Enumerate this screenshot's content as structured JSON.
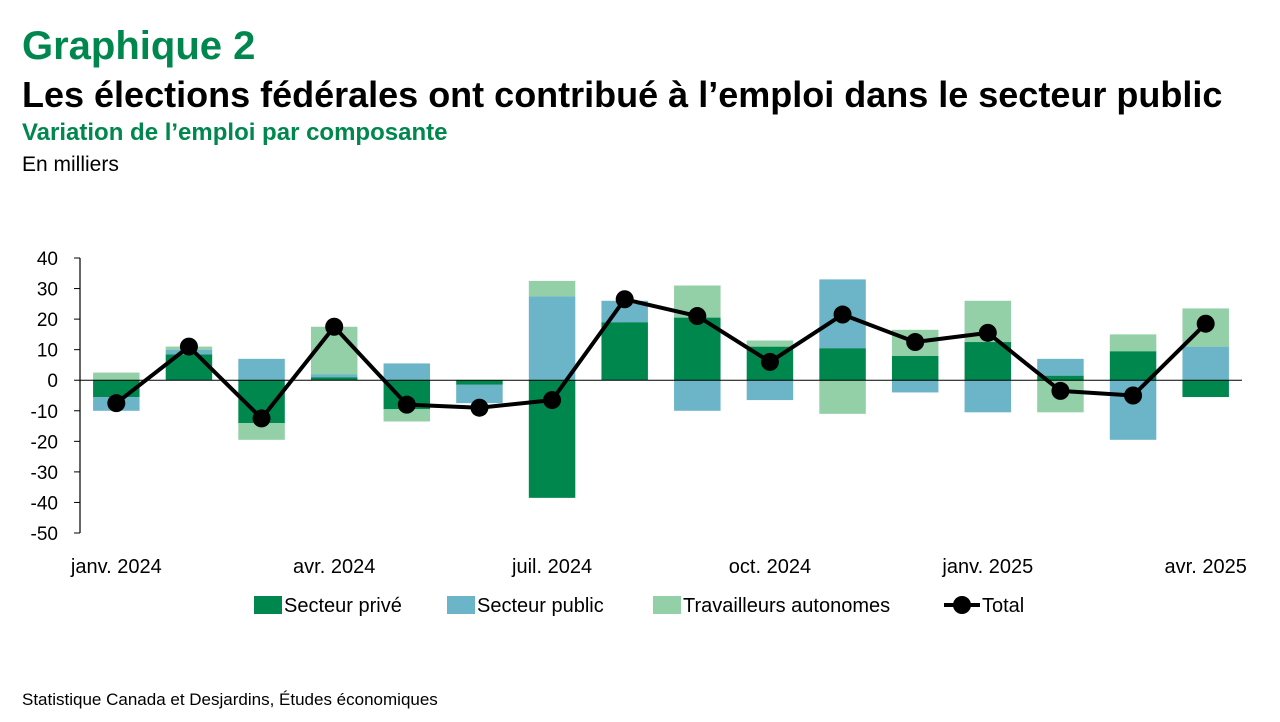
{
  "header": {
    "kicker": "Graphique 2",
    "title": "Les élections fédérales ont contribué à l’emploi dans le secteur public",
    "subtitle": "Variation de l’emploi par composante",
    "unit": "En milliers"
  },
  "source": "Statistique Canada et Desjardins, Études économiques",
  "colors": {
    "prive": "#00874E",
    "public": "#6CB4C8",
    "autonomes": "#93CFA7",
    "total": "#000000",
    "title_green": "#00874E"
  },
  "chart_data": {
    "type": "bar",
    "stacked": true,
    "ylabel": "En milliers",
    "ylim": [
      -50,
      40
    ],
    "yticks": [
      40,
      30,
      20,
      10,
      0,
      -10,
      -20,
      -30,
      -40,
      -50
    ],
    "x": [
      "2024-01",
      "2024-02",
      "2024-03",
      "2024-04",
      "2024-05",
      "2024-06",
      "2024-07",
      "2024-08",
      "2024-09",
      "2024-10",
      "2024-11",
      "2024-12",
      "2025-01",
      "2025-02",
      "2025-03",
      "2025-04"
    ],
    "xtick_labels": [
      {
        "index": 0,
        "label": "janv. 2024"
      },
      {
        "index": 3,
        "label": "avr. 2024"
      },
      {
        "index": 6,
        "label": "juil. 2024"
      },
      {
        "index": 9,
        "label": "oct. 2024"
      },
      {
        "index": 12,
        "label": "janv. 2025"
      },
      {
        "index": 15,
        "label": "avr. 2025"
      }
    ],
    "series": [
      {
        "name": "Secteur privé",
        "kind": "bar",
        "color": "#00874E",
        "values": [
          -5.5,
          8.5,
          -14,
          1,
          -9.5,
          -1.5,
          -38.5,
          19,
          20.5,
          11,
          10.5,
          8,
          12.5,
          1.5,
          9.5,
          -5.5
        ]
      },
      {
        "name": "Secteur public",
        "kind": "bar",
        "color": "#6CB4C8",
        "values": [
          -4.5,
          1.5,
          7,
          1,
          5.5,
          -6,
          27.5,
          7,
          -10,
          -6.5,
          22.5,
          -4,
          -10.5,
          5.5,
          -19.5,
          11
        ]
      },
      {
        "name": "Travailleurs autonomes",
        "kind": "bar",
        "color": "#93CFA7",
        "values": [
          2.5,
          1,
          -5.5,
          15.5,
          -4,
          0,
          5,
          0,
          10.5,
          2,
          -11,
          8.5,
          13.5,
          -10.5,
          5.5,
          12.5
        ]
      },
      {
        "name": "Total",
        "kind": "line",
        "color": "#000000",
        "values": [
          -7.5,
          11,
          -12.5,
          17.5,
          -8,
          -9,
          -6.5,
          26.5,
          21,
          6,
          21.5,
          12.5,
          15.5,
          -3.5,
          -5,
          18.5
        ]
      }
    ],
    "legend": {
      "position": "bottom"
    },
    "grid": false
  }
}
